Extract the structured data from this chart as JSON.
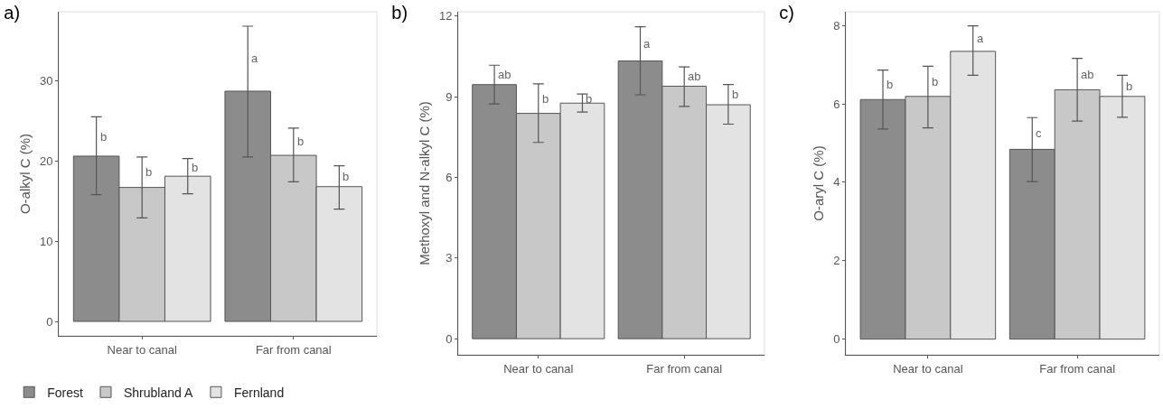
{
  "chart_data": [
    {
      "type": "bar",
      "title": "a)",
      "ylabel": "O-alkyl C (%)",
      "categories": [
        "Near to canal",
        "Far from canal"
      ],
      "ylim": [
        -1.8,
        38.6
      ],
      "yticks": [
        0,
        10,
        20,
        30
      ],
      "grid": false,
      "legend": "bottom",
      "series": [
        {
          "name": "Forest",
          "color": "#8c8c8c",
          "values": [
            20.6,
            28.7
          ],
          "errors": [
            [
              15.8,
              25.5
            ],
            [
              20.5,
              36.8
            ]
          ],
          "value_labels": [
            "b",
            "a"
          ]
        },
        {
          "name": "Shrubland A",
          "color": "#c8c8c8",
          "values": [
            16.7,
            20.7
          ],
          "errors": [
            [
              12.9,
              20.5
            ],
            [
              17.4,
              24.1
            ]
          ],
          "value_labels": [
            "b",
            "b"
          ]
        },
        {
          "name": "Fernland",
          "color": "#e3e3e3",
          "values": [
            18.1,
            16.8
          ],
          "errors": [
            [
              15.9,
              20.3
            ],
            [
              14.0,
              19.4
            ]
          ],
          "value_labels": [
            "b",
            "b"
          ]
        }
      ]
    },
    {
      "type": "bar",
      "title": "b)",
      "ylabel": "Methoxyl and N-alkyl C (%)",
      "categories": [
        "Near to canal",
        "Far from canal"
      ],
      "ylim": [
        -0.6,
        12.16
      ],
      "yticks": [
        0,
        3,
        6,
        9,
        12
      ],
      "grid": false,
      "series": [
        {
          "color": "#8c8c8c",
          "values": [
            9.45,
            10.33
          ],
          "errors": [
            [
              8.73,
              10.17
            ],
            [
              9.07,
              11.6
            ]
          ],
          "value_labels": [
            "ab",
            "a"
          ]
        },
        {
          "color": "#c8c8c8",
          "values": [
            8.38,
            9.39
          ],
          "errors": [
            [
              7.3,
              9.48
            ],
            [
              8.64,
              10.11
            ]
          ],
          "value_labels": [
            "b",
            "ab"
          ]
        },
        {
          "color": "#e3e3e3",
          "values": [
            8.76,
            8.7
          ],
          "errors": [
            [
              8.43,
              9.1
            ],
            [
              7.98,
              9.45
            ]
          ],
          "value_labels": [
            "b",
            "b"
          ]
        }
      ]
    },
    {
      "type": "bar",
      "title": "c)",
      "ylabel": "O-aryl C (%)",
      "categories": [
        "Near to canal",
        "Far from canal"
      ],
      "ylim": [
        -0.4,
        8.35
      ],
      "yticks": [
        0,
        2,
        4,
        6,
        8
      ],
      "grid": false,
      "series": [
        {
          "color": "#8c8c8c",
          "values": [
            6.11,
            4.84
          ],
          "errors": [
            [
              5.36,
              6.86
            ],
            [
              4.02,
              5.65
            ]
          ],
          "value_labels": [
            "b",
            "c"
          ]
        },
        {
          "color": "#c8c8c8",
          "values": [
            6.19,
            6.36
          ],
          "errors": [
            [
              5.39,
              6.96
            ],
            [
              5.56,
              7.16
            ]
          ],
          "value_labels": [
            "b",
            "ab"
          ]
        },
        {
          "color": "#e3e3e3",
          "values": [
            7.34,
            6.19
          ],
          "errors": [
            [
              6.73,
              7.99
            ],
            [
              5.66,
              6.73
            ]
          ],
          "value_labels": [
            "a",
            "b"
          ]
        }
      ]
    }
  ]
}
